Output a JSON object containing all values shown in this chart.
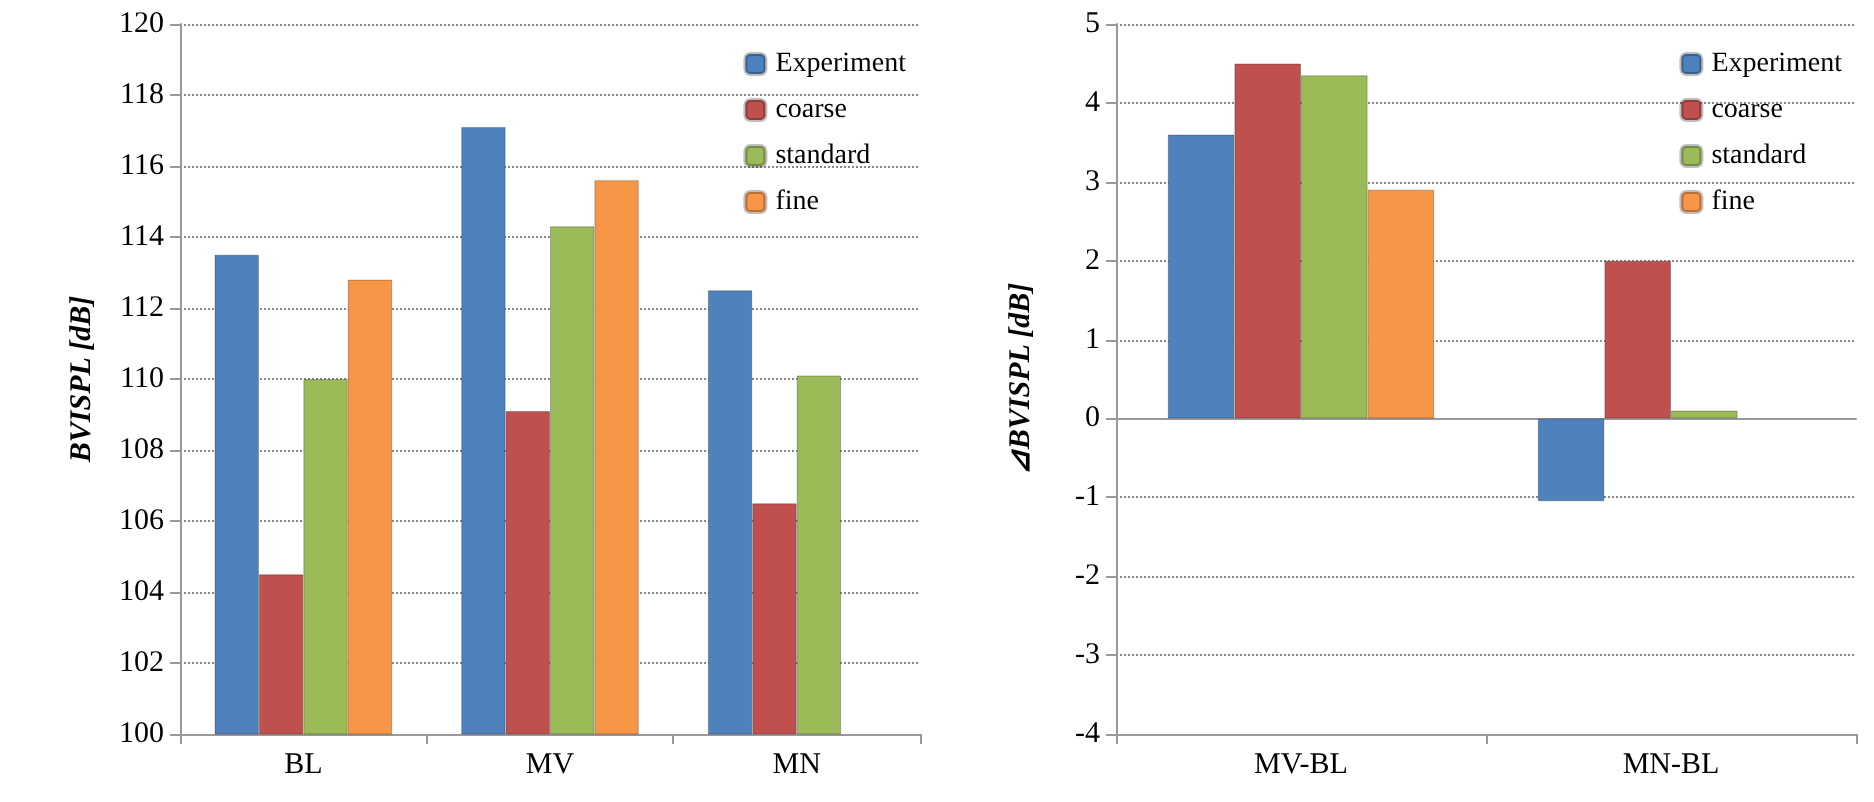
{
  "chart_data": [
    {
      "type": "bar",
      "ylabel": "BVISPL [dB]",
      "categories": [
        "BL",
        "MV",
        "MN"
      ],
      "series": [
        {
          "name": "Experiment",
          "color": "#4f81bd",
          "values": [
            113.5,
            117.1,
            112.5
          ]
        },
        {
          "name": "coarse",
          "color": "#c0504d",
          "values": [
            104.5,
            109.1,
            106.5
          ]
        },
        {
          "name": "standard",
          "color": "#9bbb59",
          "values": [
            110.0,
            114.3,
            110.1
          ]
        },
        {
          "name": "fine",
          "color": "#f79646",
          "values": [
            112.8,
            115.6,
            null
          ]
        }
      ],
      "ylim": [
        100,
        120
      ],
      "yticks": [
        100,
        102,
        104,
        106,
        108,
        110,
        112,
        114,
        116,
        118,
        120
      ],
      "grid": "y",
      "legend": "top right"
    },
    {
      "type": "bar",
      "ylabel": "⊿BVISPL [dB]",
      "categories": [
        "MV-BL",
        "MN-BL"
      ],
      "series": [
        {
          "name": "Experiment",
          "color": "#4f81bd",
          "values": [
            3.6,
            -1.05
          ]
        },
        {
          "name": "coarse",
          "color": "#c0504d",
          "values": [
            4.5,
            2.0
          ]
        },
        {
          "name": "standard",
          "color": "#9bbb59",
          "values": [
            4.35,
            0.1
          ]
        },
        {
          "name": "fine",
          "color": "#f79646",
          "values": [
            2.9,
            null
          ]
        }
      ],
      "ylim": [
        -4,
        5
      ],
      "yticks": [
        -4,
        -3,
        -2,
        -1,
        0,
        1,
        2,
        3,
        4,
        5
      ],
      "grid": "y",
      "legend": "top right"
    }
  ]
}
